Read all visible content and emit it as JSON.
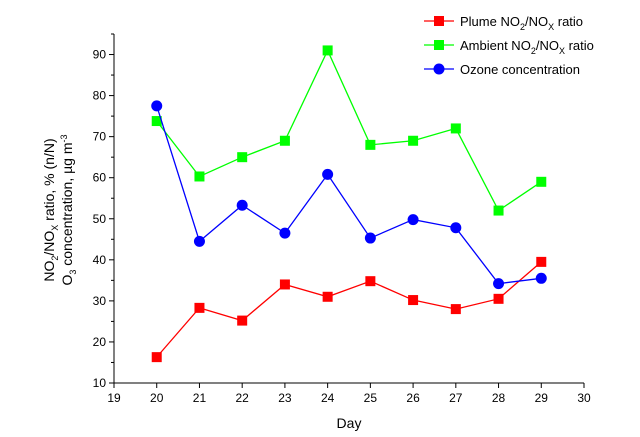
{
  "chart_data": {
    "type": "line",
    "x": [
      20,
      21,
      22,
      23,
      24,
      25,
      26,
      27,
      28,
      29
    ],
    "xlim": [
      19,
      30
    ],
    "ylim": [
      10,
      95
    ],
    "xticks": [
      19,
      20,
      21,
      22,
      23,
      24,
      25,
      26,
      27,
      28,
      29,
      30
    ],
    "yticks": [
      10,
      20,
      30,
      40,
      50,
      60,
      70,
      80,
      90
    ],
    "xlabel": "Day",
    "ylabel": {
      "line1": {
        "a": "NO",
        "a_sub": "2",
        "b": "/NO",
        "b_sub": "X",
        "c": " ratio, % (n/N)"
      },
      "line2": {
        "a": "O",
        "a_sub": "3",
        "b": " concentration, µg m",
        "b_sup": "-3"
      }
    },
    "grid": false,
    "legend_position": "top-right",
    "series": [
      {
        "name": {
          "a": "Plume NO",
          "a_sub": "2",
          "b": "/NO",
          "b_sub": "X",
          "c": " ratio"
        },
        "color": "#ff0000",
        "marker": "square",
        "values": [
          16.3,
          28.3,
          25.2,
          34.0,
          31.0,
          34.8,
          30.2,
          28.0,
          30.5,
          39.5
        ]
      },
      {
        "name": {
          "a": "Ambient NO",
          "a_sub": "2",
          "b": "/NO",
          "b_sub": "X",
          "c": " ratio"
        },
        "color": "#00ff00",
        "marker": "square",
        "values": [
          73.8,
          60.3,
          65.0,
          69.0,
          91.0,
          68.0,
          69.0,
          72.0,
          52.0,
          59.0
        ]
      },
      {
        "name": {
          "a": "Ozone concentration"
        },
        "color": "#0000ff",
        "marker": "circle",
        "values": [
          77.5,
          44.5,
          53.3,
          46.5,
          60.8,
          45.3,
          49.8,
          47.8,
          34.2,
          35.5
        ]
      }
    ]
  }
}
